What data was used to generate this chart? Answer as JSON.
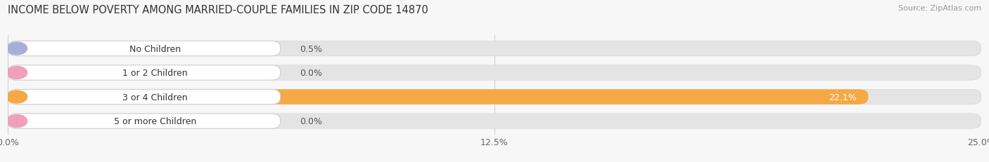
{
  "title": "INCOME BELOW POVERTY AMONG MARRIED-COUPLE FAMILIES IN ZIP CODE 14870",
  "source": "Source: ZipAtlas.com",
  "categories": [
    "No Children",
    "1 or 2 Children",
    "3 or 4 Children",
    "5 or more Children"
  ],
  "values": [
    0.5,
    0.0,
    22.1,
    0.0
  ],
  "bar_colors": [
    "#a8aed8",
    "#f0a0b8",
    "#f5a843",
    "#f0a0b8"
  ],
  "xlim_max": 25.0,
  "xtick_labels": [
    "0.0%",
    "12.5%",
    "25.0%"
  ],
  "xtick_vals": [
    0.0,
    12.5,
    25.0
  ],
  "title_fontsize": 10.5,
  "source_fontsize": 8,
  "tick_fontsize": 9,
  "label_fontsize": 9,
  "value_fontsize": 9,
  "background_color": "#f7f7f7",
  "bar_background_color": "#e4e4e4",
  "value_label_inside_color": "#ffffff",
  "value_label_outside_color": "#555555",
  "label_box_color": "#ffffff",
  "label_box_edge_color": "#d0d0d0",
  "grid_color": "#cccccc",
  "text_color": "#333333"
}
